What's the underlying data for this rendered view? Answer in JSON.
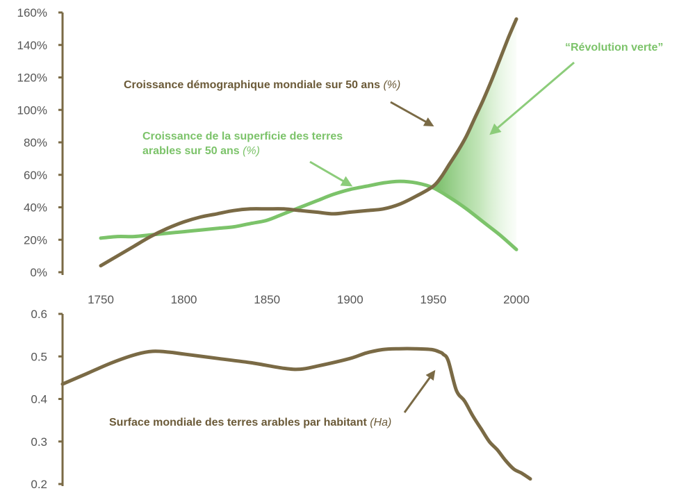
{
  "colors": {
    "brown": "#7a6a45",
    "green": "#7cc36a",
    "green_arrow": "#8ccc7a",
    "text_brown": "#6b5a38",
    "tick_text": "#555555"
  },
  "chart_data": [
    {
      "type": "line",
      "title": "",
      "xlabel": "",
      "ylabel": "",
      "xlim": [
        1750,
        2000
      ],
      "ylim": [
        0,
        160
      ],
      "x_ticks": [
        "1750",
        "1800",
        "1850",
        "1900",
        "1950",
        "2000"
      ],
      "y_ticks": [
        "0%",
        "20%",
        "40%",
        "60%",
        "80%",
        "100%",
        "120%",
        "140%",
        "160%"
      ],
      "series": [
        {
          "name": "Croissance démographique mondiale sur 50 ans (%)",
          "x": [
            1750,
            1760,
            1770,
            1780,
            1790,
            1800,
            1810,
            1820,
            1830,
            1840,
            1850,
            1860,
            1870,
            1880,
            1890,
            1900,
            1910,
            1920,
            1930,
            1940,
            1950,
            1955,
            1960,
            1965,
            1970,
            1975,
            1980,
            1985,
            1990,
            1995,
            2000
          ],
          "values": [
            4,
            10,
            16,
            22,
            27,
            31,
            34,
            36,
            38,
            39,
            39,
            39,
            38,
            37,
            36,
            37,
            38,
            39,
            42,
            47,
            53,
            59,
            67,
            75,
            84,
            95,
            106,
            118,
            131,
            144,
            156
          ]
        },
        {
          "name": "Croissance de la superficie des terres arables sur 50 ans (%)",
          "x": [
            1750,
            1760,
            1770,
            1780,
            1790,
            1800,
            1810,
            1820,
            1830,
            1840,
            1850,
            1860,
            1870,
            1880,
            1890,
            1900,
            1910,
            1920,
            1930,
            1940,
            1950,
            1960,
            1970,
            1980,
            1990,
            2000
          ],
          "values": [
            21,
            22,
            22,
            23,
            24,
            25,
            26,
            27,
            28,
            30,
            32,
            36,
            40,
            44,
            48,
            51,
            53,
            55,
            56,
            55,
            52,
            46,
            39,
            31,
            23,
            14
          ]
        }
      ],
      "annotations": {
        "pop_label": "Croissance démographique mondiale sur 50 ans",
        "pop_unit": "(%)",
        "land_label_line1": "Croissance de la superficie des terres",
        "land_label_line2": "arables sur 50 ans",
        "land_unit": "(%)",
        "green_revolution": "“Révolution verte”"
      }
    },
    {
      "type": "line",
      "title": "",
      "xlabel": "",
      "ylabel": "",
      "xlim": [
        1725,
        2010
      ],
      "ylim": [
        0.2,
        0.6
      ],
      "y_ticks": [
        "0.2",
        "0.3",
        "0.4",
        "0.5",
        "0.6"
      ],
      "series": [
        {
          "name": "Surface mondiale des terres arables par habitant (Ha)",
          "x": [
            1725,
            1740,
            1755,
            1770,
            1780,
            1790,
            1800,
            1820,
            1840,
            1860,
            1870,
            1880,
            1900,
            1910,
            1920,
            1930,
            1940,
            1950,
            1955,
            1957,
            1960,
            1965,
            1970,
            1975,
            1980,
            1985,
            1990,
            1995,
            2000,
            2005,
            2010
          ],
          "values": [
            0.435,
            0.46,
            0.485,
            0.505,
            0.512,
            0.51,
            0.505,
            0.495,
            0.485,
            0.472,
            0.47,
            0.477,
            0.495,
            0.508,
            0.516,
            0.518,
            0.518,
            0.516,
            0.51,
            0.505,
            0.49,
            0.42,
            0.395,
            0.36,
            0.33,
            0.3,
            0.28,
            0.255,
            0.235,
            0.225,
            0.212
          ]
        }
      ],
      "annotations": {
        "label": "Surface mondiale des terres arables par habitant",
        "unit": "(Ha)"
      }
    }
  ]
}
